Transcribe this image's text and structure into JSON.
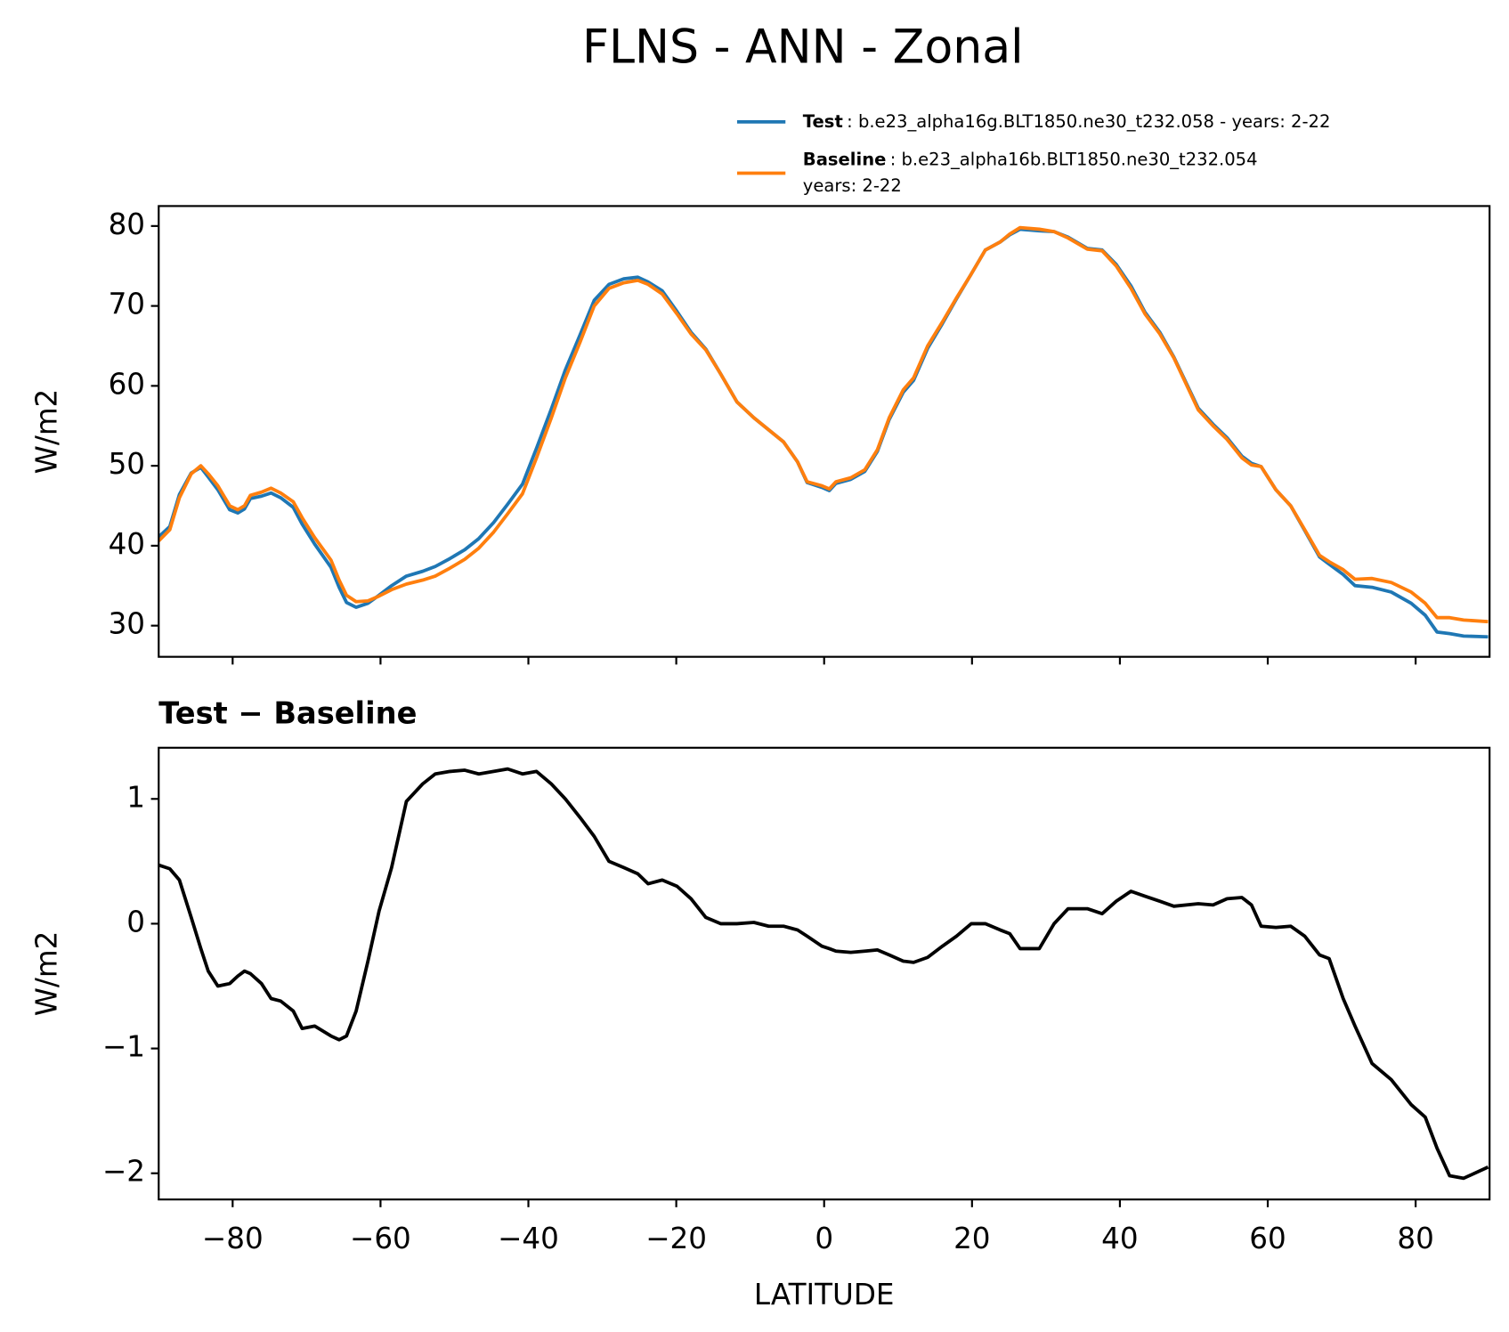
{
  "chart_data": [
    {
      "type": "line",
      "title": "FLNS - ANN - Zonal",
      "ylabel": "W/m2",
      "x": [
        -90,
        -88.5,
        -87.2,
        -85.6,
        -84.3,
        -83.3,
        -82,
        -80.4,
        -79.3,
        -78.4,
        -77.6,
        -76.1,
        -74.8,
        -73.5,
        -71.8,
        -70.6,
        -68.9,
        -66.7,
        -65.6,
        -64.6,
        -63.3,
        -61.7,
        -60.2,
        -58.5,
        -56.5,
        -54.3,
        -52.6,
        -50.6,
        -48.6,
        -46.7,
        -44.7,
        -42.8,
        -40.8,
        -38.9,
        -36.9,
        -35,
        -33,
        -31.1,
        -29.1,
        -27.1,
        -25.2,
        -23.8,
        -21.9,
        -19.9,
        -18,
        -16,
        -14,
        -11.8,
        -9.5,
        -7.5,
        -5.5,
        -3.6,
        -2.3,
        -0.3,
        0.7,
        1.6,
        3.6,
        5.5,
        7.2,
        8.8,
        10.7,
        12.1,
        14,
        16,
        17.9,
        19.9,
        21.8,
        23.8,
        25.1,
        26.5,
        29.1,
        31.1,
        33,
        35.6,
        37.6,
        39.5,
        41.5,
        43.4,
        45.4,
        47.3,
        50.6,
        52.6,
        54.5,
        56.5,
        57.8,
        59.1,
        61.1,
        63.1,
        65,
        67,
        68.3,
        70.2,
        71.8,
        74.1,
        76.7,
        79.4,
        81.3,
        82.9,
        84.6,
        86.5,
        89.8
      ],
      "series": [
        {
          "name": "Test",
          "description": [
            ": b.e23_alpha16g.BLT1850.ne30_t232.058 - years: 2-22"
          ],
          "color": "#1f77b4",
          "values": [
            41.1,
            42.4,
            46.4,
            49.1,
            49.8,
            48.6,
            47.0,
            44.5,
            44.1,
            44.6,
            45.9,
            46.2,
            46.6,
            46.0,
            44.8,
            42.7,
            40.2,
            37.3,
            34.8,
            32.9,
            32.3,
            32.8,
            33.8,
            35.0,
            36.2,
            36.8,
            37.4,
            38.4,
            39.5,
            40.9,
            42.9,
            45.2,
            47.7,
            52.2,
            57.1,
            62.0,
            66.4,
            70.7,
            72.7,
            73.4,
            73.6,
            73.0,
            71.9,
            69.3,
            66.7,
            64.6,
            61.5,
            58.0,
            56.0,
            54.5,
            53.0,
            50.5,
            47.9,
            47.3,
            46.9,
            47.8,
            48.3,
            49.3,
            51.8,
            55.8,
            59.2,
            60.7,
            64.7,
            67.8,
            70.9,
            74.0,
            77.0,
            78.0,
            78.9,
            79.6,
            79.4,
            79.3,
            78.6,
            77.2,
            77.0,
            75.2,
            72.5,
            69.2,
            66.7,
            63.6,
            57.2,
            55.2,
            53.5,
            51.2,
            50.3,
            49.9,
            47.0,
            45.0,
            41.9,
            38.6,
            37.7,
            36.4,
            35.0,
            34.8,
            34.2,
            32.8,
            31.3,
            29.2,
            29.0,
            28.7,
            28.6
          ]
        },
        {
          "name": "Baseline",
          "description": [
            ": b.e23_alpha16b.BLT1850.ne30_t232.054",
            "years: 2-22"
          ],
          "color": "#ff7f0e",
          "values": [
            40.6,
            42.0,
            46.0,
            49.0,
            50.0,
            49.0,
            47.5,
            45.0,
            44.5,
            45.0,
            46.3,
            46.7,
            47.2,
            46.6,
            45.5,
            43.5,
            41.0,
            38.2,
            35.7,
            33.8,
            33.0,
            33.1,
            33.7,
            34.5,
            35.2,
            35.7,
            36.2,
            37.2,
            38.3,
            39.7,
            41.7,
            44.0,
            46.5,
            51.0,
            56.0,
            61.0,
            65.5,
            70.0,
            72.2,
            72.9,
            73.2,
            72.7,
            71.5,
            69.0,
            66.5,
            64.5,
            61.5,
            58.0,
            56.0,
            54.5,
            53.0,
            50.5,
            48.0,
            47.5,
            47.1,
            48.0,
            48.5,
            49.5,
            52.0,
            56.0,
            59.5,
            61.0,
            65.0,
            68.0,
            71.0,
            74.0,
            77.0,
            78.0,
            79.0,
            79.8,
            79.6,
            79.3,
            78.5,
            77.1,
            76.9,
            75.0,
            72.2,
            69.0,
            66.5,
            63.5,
            57.0,
            55.0,
            53.3,
            51.0,
            50.1,
            49.9,
            47.0,
            45.0,
            42.0,
            38.8,
            38.0,
            37.0,
            35.8,
            35.9,
            35.4,
            34.2,
            32.8,
            31.0,
            31.0,
            30.7,
            30.5
          ]
        }
      ],
      "xlim": [
        -90,
        90
      ],
      "xticks": [
        -80,
        -60,
        -40,
        -20,
        0,
        20,
        40,
        60,
        80
      ],
      "xticklabels": false,
      "ylim": [
        26.1,
        82.5
      ],
      "yticks": [
        30,
        40,
        50,
        60,
        70,
        80
      ]
    },
    {
      "type": "line",
      "title": "Test − Baseline",
      "ylabel": "W/m2",
      "xlabel": "LATITUDE",
      "x": [
        -90,
        -88.5,
        -87.2,
        -85.6,
        -84.3,
        -83.3,
        -82,
        -80.4,
        -79.3,
        -78.4,
        -77.6,
        -76.1,
        -74.8,
        -73.5,
        -71.8,
        -70.6,
        -68.9,
        -66.7,
        -65.6,
        -64.6,
        -63.3,
        -61.7,
        -60.2,
        -58.5,
        -56.5,
        -54.3,
        -52.6,
        -50.6,
        -48.6,
        -46.7,
        -44.7,
        -42.8,
        -40.8,
        -38.9,
        -36.9,
        -35,
        -33,
        -31.1,
        -29.1,
        -27.1,
        -25.2,
        -23.8,
        -21.9,
        -19.9,
        -18,
        -16,
        -14,
        -11.8,
        -9.5,
        -7.5,
        -5.5,
        -3.6,
        -2.3,
        -0.3,
        0.7,
        1.6,
        3.6,
        5.5,
        7.2,
        8.8,
        10.7,
        12.1,
        14,
        16,
        17.9,
        19.9,
        21.8,
        23.8,
        25.1,
        26.5,
        29.1,
        31.1,
        33,
        35.6,
        37.6,
        39.5,
        41.5,
        43.4,
        45.4,
        47.3,
        50.6,
        52.6,
        54.5,
        56.5,
        57.8,
        59.1,
        61.1,
        63.1,
        65,
        67,
        68.3,
        70.2,
        71.8,
        74.1,
        76.7,
        79.4,
        81.3,
        82.9,
        84.6,
        86.5,
        89.8
      ],
      "series": [
        {
          "color": "#000000",
          "values": [
            0.47,
            0.44,
            0.35,
            0.05,
            -0.2,
            -0.38,
            -0.5,
            -0.48,
            -0.42,
            -0.38,
            -0.4,
            -0.48,
            -0.6,
            -0.62,
            -0.7,
            -0.84,
            -0.82,
            -0.9,
            -0.93,
            -0.9,
            -0.7,
            -0.3,
            0.1,
            0.45,
            0.98,
            1.12,
            1.2,
            1.22,
            1.23,
            1.2,
            1.22,
            1.24,
            1.2,
            1.22,
            1.12,
            1.0,
            0.85,
            0.7,
            0.5,
            0.45,
            0.4,
            0.32,
            0.35,
            0.3,
            0.2,
            0.05,
            0.0,
            0.0,
            0.01,
            -0.02,
            -0.02,
            -0.05,
            -0.1,
            -0.18,
            -0.2,
            -0.22,
            -0.23,
            -0.22,
            -0.21,
            -0.25,
            -0.3,
            -0.31,
            -0.27,
            -0.18,
            -0.1,
            0.0,
            0.0,
            -0.05,
            -0.08,
            -0.2,
            -0.2,
            0.0,
            0.12,
            0.12,
            0.08,
            0.18,
            0.26,
            0.22,
            0.18,
            0.14,
            0.16,
            0.15,
            0.2,
            0.21,
            0.15,
            -0.02,
            -0.03,
            -0.02,
            -0.1,
            -0.25,
            -0.28,
            -0.6,
            -0.82,
            -1.12,
            -1.25,
            -1.45,
            -1.55,
            -1.8,
            -2.02,
            -2.04,
            -1.95
          ]
        }
      ],
      "xlim": [
        -90,
        90
      ],
      "xticks": [
        {
          "value": -80,
          "label": "−80"
        },
        {
          "value": -60,
          "label": "−60"
        },
        {
          "value": -40,
          "label": "−40"
        },
        {
          "value": -20,
          "label": "−20"
        },
        0,
        20,
        40,
        60,
        80
      ],
      "xticklabels": true,
      "ylim": [
        -2.21,
        1.41
      ],
      "yticks": [
        {
          "value": -2,
          "label": "−2"
        },
        {
          "value": -1,
          "label": "−1"
        },
        0,
        1
      ]
    }
  ]
}
